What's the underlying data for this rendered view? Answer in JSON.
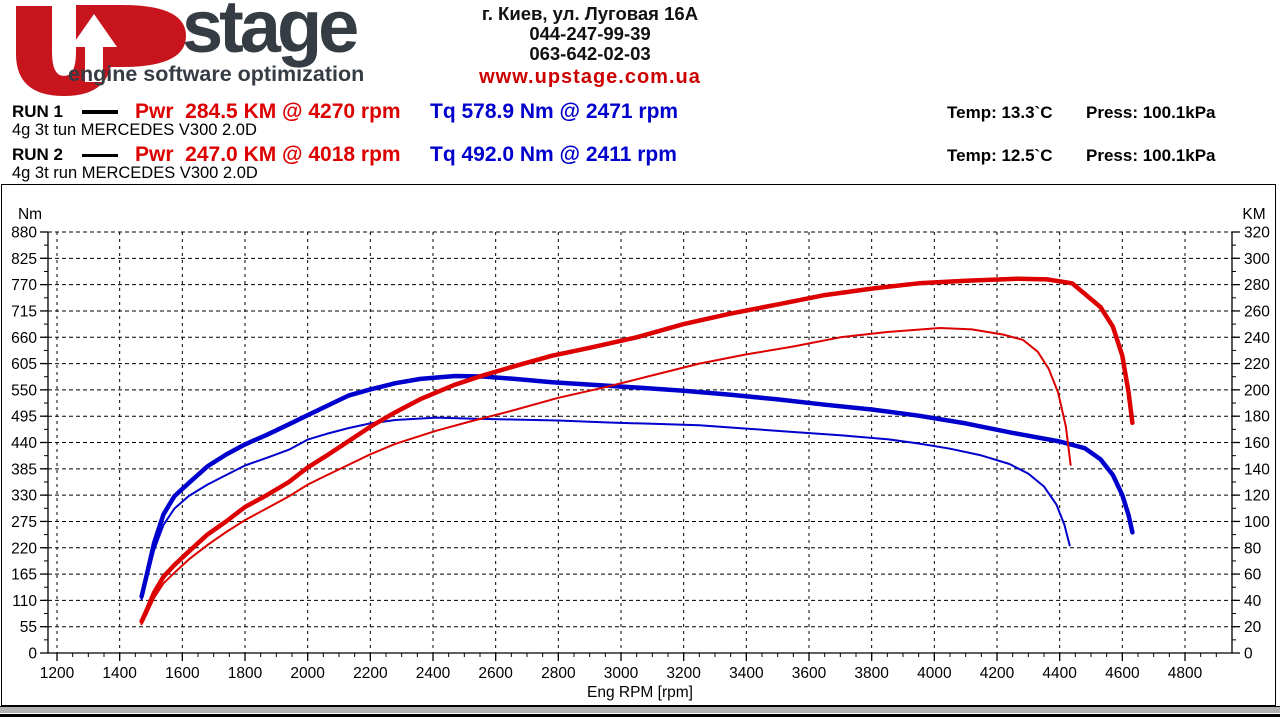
{
  "header": {
    "logo": {
      "brand": "stage",
      "tagline": "engine software optimization"
    },
    "contact": {
      "address": "г. Киев, ул. Луговая 16А",
      "phone1": "044-247-99-39",
      "phone2": "063-642-02-03",
      "website": "www.upstage.com.ua"
    }
  },
  "runs": [
    {
      "label": "RUN 1",
      "power": "Pwr  284.5 KM @ 4270 rpm",
      "torque": "Tq 578.9 Nm @ 2471 rpm",
      "temp": "Temp: 13.3`C",
      "press": "Press: 100.1kPa",
      "desc": "4g 3t tun MERCEDES V300 2.0D"
    },
    {
      "label": "RUN 2",
      "power": "Pwr  247.0 KM @ 4018 rpm",
      "torque": "Tq 492.0 Nm @ 2411 rpm",
      "temp": "Temp: 12.5`C",
      "press": "Press: 100.1kPa",
      "desc": "4g 3t run MERCEDES V300 2.0D"
    }
  ],
  "colors": {
    "red": "#dd0000",
    "blue": "#0000cd",
    "logo_red": "#c8151d",
    "logo_gray": "#363c44"
  },
  "chart_data": {
    "type": "line",
    "grid": true,
    "x_axis": {
      "label": "Eng RPM [rpm]",
      "min": 1200,
      "max": 4800,
      "tick_step": 200,
      "minor_step": 50
    },
    "y_left": {
      "label": "Nm",
      "min": 0,
      "max": 880,
      "tick_step": 55,
      "minor_step": 27.5
    },
    "y_right": {
      "label": "KM",
      "min": 0,
      "max": 320,
      "tick_step": 20,
      "minor_step": 10
    },
    "series": [
      {
        "name": "run1-torque",
        "legend": "RUN 1 torque (Nm)",
        "axis": "left",
        "color": "#0000cd",
        "width": 4.5,
        "points": [
          [
            1470,
            118
          ],
          [
            1487,
            165
          ],
          [
            1510,
            230
          ],
          [
            1540,
            290
          ],
          [
            1575,
            328
          ],
          [
            1620,
            355
          ],
          [
            1680,
            390
          ],
          [
            1740,
            415
          ],
          [
            1800,
            436
          ],
          [
            1870,
            456
          ],
          [
            1940,
            478
          ],
          [
            2000,
            497
          ],
          [
            2060,
            516
          ],
          [
            2130,
            538
          ],
          [
            2200,
            551
          ],
          [
            2280,
            564
          ],
          [
            2360,
            573
          ],
          [
            2471,
            579
          ],
          [
            2560,
            578
          ],
          [
            2660,
            573
          ],
          [
            2780,
            566
          ],
          [
            2900,
            561
          ],
          [
            3050,
            555
          ],
          [
            3200,
            548
          ],
          [
            3350,
            540
          ],
          [
            3500,
            530
          ],
          [
            3650,
            519
          ],
          [
            3800,
            509
          ],
          [
            3950,
            496
          ],
          [
            4100,
            480
          ],
          [
            4250,
            460
          ],
          [
            4400,
            442
          ],
          [
            4480,
            428
          ],
          [
            4530,
            405
          ],
          [
            4570,
            372
          ],
          [
            4600,
            330
          ],
          [
            4620,
            288
          ],
          [
            4632,
            252
          ]
        ]
      },
      {
        "name": "run2-torque",
        "legend": "RUN 2 torque (Nm)",
        "axis": "left",
        "color": "#0000cd",
        "width": 2,
        "points": [
          [
            1470,
            112
          ],
          [
            1487,
            155
          ],
          [
            1510,
            215
          ],
          [
            1540,
            268
          ],
          [
            1575,
            302
          ],
          [
            1620,
            328
          ],
          [
            1680,
            352
          ],
          [
            1740,
            372
          ],
          [
            1800,
            392
          ],
          [
            1870,
            408
          ],
          [
            1940,
            425
          ],
          [
            2000,
            446
          ],
          [
            2060,
            458
          ],
          [
            2130,
            470
          ],
          [
            2200,
            480
          ],
          [
            2280,
            487
          ],
          [
            2411,
            492
          ],
          [
            2520,
            490
          ],
          [
            2650,
            488
          ],
          [
            2800,
            486
          ],
          [
            2950,
            482
          ],
          [
            3100,
            479
          ],
          [
            3250,
            476
          ],
          [
            3400,
            469
          ],
          [
            3550,
            462
          ],
          [
            3700,
            455
          ],
          [
            3850,
            447
          ],
          [
            3950,
            438
          ],
          [
            4050,
            427
          ],
          [
            4150,
            413
          ],
          [
            4240,
            395
          ],
          [
            4300,
            375
          ],
          [
            4350,
            348
          ],
          [
            4390,
            310
          ],
          [
            4415,
            268
          ],
          [
            4432,
            225
          ]
        ]
      },
      {
        "name": "run1-power",
        "legend": "RUN 1 power (KM)",
        "axis": "right",
        "color": "#dd0000",
        "width": 4.5,
        "points": [
          [
            1470,
            24
          ],
          [
            1487,
            33
          ],
          [
            1510,
            46
          ],
          [
            1540,
            58
          ],
          [
            1575,
            67
          ],
          [
            1620,
            77
          ],
          [
            1680,
            90
          ],
          [
            1740,
            100
          ],
          [
            1800,
            111
          ],
          [
            1870,
            120
          ],
          [
            1940,
            130
          ],
          [
            2000,
            141
          ],
          [
            2060,
            150
          ],
          [
            2130,
            161
          ],
          [
            2200,
            172
          ],
          [
            2280,
            183
          ],
          [
            2360,
            193
          ],
          [
            2471,
            204
          ],
          [
            2560,
            211
          ],
          [
            2660,
            218
          ],
          [
            2780,
            226
          ],
          [
            2900,
            232
          ],
          [
            3050,
            240
          ],
          [
            3200,
            250
          ],
          [
            3350,
            258
          ],
          [
            3500,
            265
          ],
          [
            3650,
            272
          ],
          [
            3800,
            277
          ],
          [
            3950,
            281
          ],
          [
            4100,
            283
          ],
          [
            4270,
            284.5
          ],
          [
            4360,
            284
          ],
          [
            4440,
            281
          ],
          [
            4490,
            271
          ],
          [
            4530,
            263
          ],
          [
            4570,
            248
          ],
          [
            4600,
            226
          ],
          [
            4620,
            198
          ],
          [
            4632,
            175
          ]
        ]
      },
      {
        "name": "run2-power",
        "legend": "RUN 2 power (KM)",
        "axis": "right",
        "color": "#dd0000",
        "width": 2,
        "points": [
          [
            1470,
            22
          ],
          [
            1487,
            30
          ],
          [
            1510,
            42
          ],
          [
            1540,
            53
          ],
          [
            1575,
            61
          ],
          [
            1620,
            71
          ],
          [
            1680,
            82
          ],
          [
            1740,
            92
          ],
          [
            1800,
            101
          ],
          [
            1870,
            110
          ],
          [
            1940,
            119
          ],
          [
            2000,
            128
          ],
          [
            2060,
            135
          ],
          [
            2130,
            143
          ],
          [
            2200,
            151
          ],
          [
            2280,
            159
          ],
          [
            2411,
            169
          ],
          [
            2520,
            176
          ],
          [
            2650,
            184
          ],
          [
            2800,
            194
          ],
          [
            2950,
            202
          ],
          [
            3100,
            211
          ],
          [
            3250,
            220
          ],
          [
            3400,
            227
          ],
          [
            3550,
            233
          ],
          [
            3700,
            240
          ],
          [
            3850,
            244
          ],
          [
            4018,
            247
          ],
          [
            4120,
            246
          ],
          [
            4220,
            242
          ],
          [
            4283,
            238
          ],
          [
            4330,
            229
          ],
          [
            4365,
            216
          ],
          [
            4395,
            198
          ],
          [
            4420,
            172
          ],
          [
            4435,
            143
          ]
        ]
      }
    ]
  }
}
